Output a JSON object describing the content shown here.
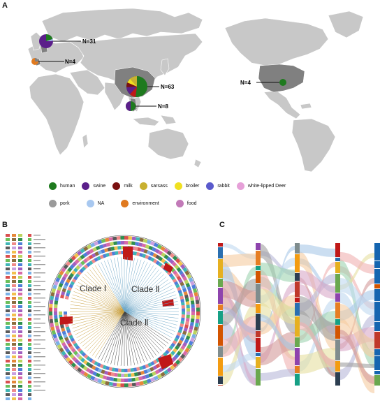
{
  "panels": {
    "a": {
      "letter": "A"
    },
    "b": {
      "letter": "B"
    },
    "c": {
      "letter": "C"
    }
  },
  "map": {
    "callouts": [
      {
        "id": "europe-north",
        "label": "N=31"
      },
      {
        "id": "europe-west",
        "label": "N=4"
      },
      {
        "id": "china",
        "label": "N=63"
      },
      {
        "id": "southeast-asia",
        "label": "N=8"
      },
      {
        "id": "usa",
        "label": "N=4"
      }
    ],
    "colors": {
      "land": "#c8c8c8",
      "highlight": "#808080",
      "ocean": "#ffffff"
    }
  },
  "legend": {
    "row1": [
      {
        "label": "human",
        "color": "#1e7a1e"
      },
      {
        "label": "swine",
        "color": "#5b1f8a"
      },
      {
        "label": "milk",
        "color": "#7a1010"
      },
      {
        "label": "sarsass",
        "color": "#c8b030"
      },
      {
        "label": "broiler",
        "color": "#f0e020"
      },
      {
        "label": "rabbit",
        "color": "#5a5acc"
      },
      {
        "label": "white-lipped Deer",
        "color": "#e6a0d8"
      }
    ],
    "row2": [
      {
        "label": "pork",
        "color": "#9a9a9a"
      },
      {
        "label": "NA",
        "color": "#a8c8f0"
      },
      {
        "label": "environment",
        "color": "#e07a20"
      },
      {
        "label": "food",
        "color": "#c27ab8"
      }
    ]
  },
  "tree": {
    "clades": [
      "Clade Ⅰ",
      "Clade Ⅱ",
      "Clade Ⅱ"
    ],
    "colors": {
      "red_block": "#c01818"
    }
  }
}
